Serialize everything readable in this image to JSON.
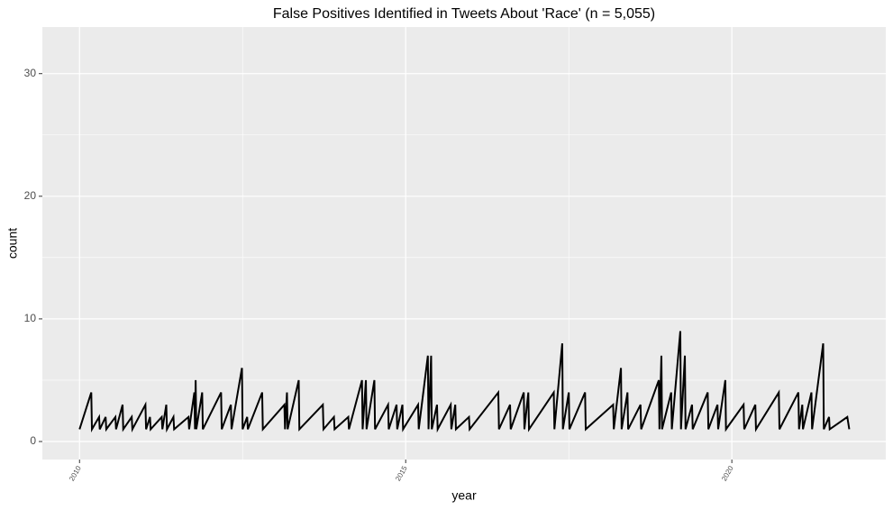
{
  "chart_data": {
    "type": "line",
    "title": "False Positives Identified in Tweets About 'Race' (n = 5,055)",
    "x_label": "year",
    "y_label": "count",
    "color": "#000000",
    "x": [
      2010.0,
      2010.18,
      2010.19,
      2010.3,
      2010.31,
      2010.4,
      2010.41,
      2010.55,
      2010.56,
      2010.66,
      2010.67,
      2010.8,
      2010.81,
      2011.01,
      2011.02,
      2011.08,
      2011.09,
      2011.26,
      2011.27,
      2011.33,
      2011.34,
      2011.44,
      2011.45,
      2011.67,
      2011.68,
      2011.76,
      2011.77,
      2011.78,
      2011.79,
      2011.88,
      2011.89,
      2012.17,
      2012.18,
      2012.32,
      2012.33,
      2012.49,
      2012.5,
      2012.57,
      2012.58,
      2012.8,
      2012.81,
      2013.14,
      2013.15,
      2013.18,
      2013.19,
      2013.36,
      2013.37,
      2013.73,
      2013.74,
      2013.9,
      2013.91,
      2014.12,
      2014.13,
      2014.33,
      2014.34,
      2014.39,
      2014.4,
      2014.52,
      2014.53,
      2014.73,
      2014.74,
      2014.86,
      2014.87,
      2014.95,
      2014.96,
      2015.19,
      2015.2,
      2015.34,
      2015.35,
      2015.39,
      2015.4,
      2015.48,
      2015.49,
      2015.69,
      2015.7,
      2015.76,
      2015.77,
      2015.97,
      2015.98,
      2016.42,
      2016.43,
      2016.6,
      2016.61,
      2016.81,
      2016.82,
      2016.88,
      2016.89,
      2017.27,
      2017.28,
      2017.4,
      2017.41,
      2017.5,
      2017.51,
      2017.75,
      2017.76,
      2018.18,
      2018.19,
      2018.3,
      2018.31,
      2018.4,
      2018.41,
      2018.6,
      2018.61,
      2018.88,
      2018.89,
      2018.92,
      2018.93,
      2019.07,
      2019.08,
      2019.21,
      2019.22,
      2019.28,
      2019.29,
      2019.39,
      2019.4,
      2019.63,
      2019.64,
      2019.78,
      2019.79,
      2019.9,
      2019.91,
      2020.18,
      2020.19,
      2020.36,
      2020.37,
      2020.72,
      2020.73,
      2021.02,
      2021.03,
      2021.08,
      2021.09,
      2021.22,
      2021.23,
      2021.4,
      2021.41,
      2021.49,
      2021.5,
      2021.77,
      2021.8
    ],
    "values": [
      1,
      4,
      1,
      2,
      1,
      2,
      1,
      2,
      1,
      3,
      1,
      2,
      1,
      3,
      1,
      2,
      1,
      2,
      1,
      3,
      1,
      2,
      1,
      2,
      1,
      4,
      1,
      5,
      1,
      4,
      1,
      4,
      1,
      3,
      1,
      6,
      1,
      2,
      1,
      4,
      1,
      3,
      1,
      4,
      1,
      5,
      1,
      3,
      1,
      2,
      1,
      2,
      1,
      5,
      1,
      5,
      1,
      5,
      1,
      3,
      1,
      3,
      1,
      3,
      1,
      3,
      1,
      7,
      1,
      7,
      1,
      3,
      1,
      3,
      1,
      3,
      1,
      2,
      1,
      4,
      1,
      3,
      1,
      4,
      1,
      4,
      1,
      4,
      1,
      8,
      1,
      4,
      1,
      4,
      1,
      3,
      1,
      6,
      1,
      4,
      1,
      3,
      1,
      5,
      1,
      7,
      1,
      4,
      1,
      9,
      1,
      7,
      1,
      3,
      1,
      4,
      1,
      3,
      1,
      5,
      1,
      3,
      1,
      3,
      1,
      4,
      1,
      4,
      1,
      3,
      1,
      4,
      1,
      8,
      1,
      2,
      1,
      2,
      1
    ],
    "xlim": [
      2009.43,
      2022.36
    ],
    "xticks": [
      2010,
      2015,
      2020
    ],
    "x_minor_ticks": [
      2012.5,
      2017.5
    ],
    "ylim": [
      -1.47,
      33.8
    ],
    "yticks": [
      0,
      10,
      20,
      30
    ],
    "y_minor_ticks": [
      5,
      15,
      25
    ],
    "grid": true
  }
}
